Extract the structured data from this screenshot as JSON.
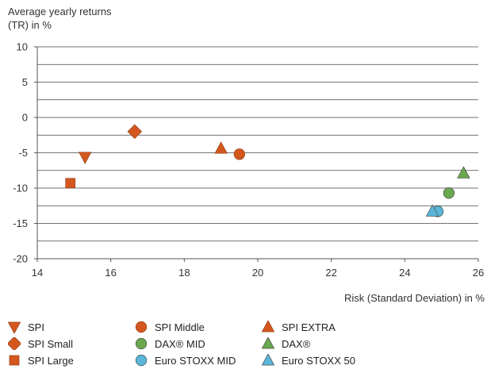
{
  "chart_data": {
    "type": "scatter",
    "ylabel_line1": "Average yearly returns",
    "ylabel_line2": "(TR) in %",
    "xlabel": "Risk (Standard Deviation) in %",
    "xlim": [
      14,
      26
    ],
    "ylim": [
      -20,
      10
    ],
    "xticks": [
      14,
      16,
      18,
      20,
      22,
      24,
      26
    ],
    "yticks": [
      10,
      5,
      0,
      -5,
      -10,
      -15,
      -20
    ],
    "grid": "horizontal",
    "legend_position": "bottom",
    "series": [
      {
        "name": "SPI",
        "marker": "triangle-down",
        "color": "#d4571e",
        "x": 15.3,
        "y": -5.6
      },
      {
        "name": "SPI Small",
        "marker": "diamond",
        "color": "#d4571e",
        "x": 16.65,
        "y": -2.0
      },
      {
        "name": "SPI Large",
        "marker": "square",
        "color": "#d4571e",
        "x": 14.9,
        "y": -9.3
      },
      {
        "name": "SPI Middle",
        "marker": "circle",
        "color": "#d4571e",
        "x": 19.5,
        "y": -5.2
      },
      {
        "name": "DAX® MID",
        "marker": "circle",
        "color": "#6aa84f",
        "x": 25.2,
        "y": -10.7
      },
      {
        "name": "Euro STOXX MID",
        "marker": "circle",
        "color": "#5bb5d8",
        "x": 24.9,
        "y": -13.3
      },
      {
        "name": "SPI EXTRA",
        "marker": "triangle-up",
        "color": "#d4571e",
        "x": 19.0,
        "y": -4.4
      },
      {
        "name": "DAX®",
        "marker": "triangle-up",
        "color": "#6aa84f",
        "x": 25.6,
        "y": -7.9
      },
      {
        "name": "Euro STOXX 50",
        "marker": "triangle-up",
        "color": "#5bb5d8",
        "x": 24.75,
        "y": -13.3
      }
    ]
  }
}
